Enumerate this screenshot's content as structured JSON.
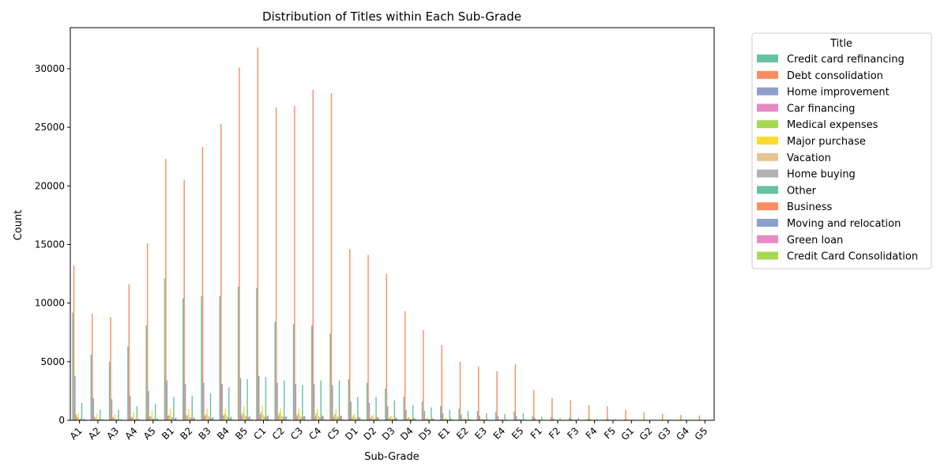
{
  "chart_data": {
    "type": "bar",
    "title": "Distribution of Titles within Each Sub-Grade",
    "xlabel": "Sub-Grade",
    "ylabel": "Count",
    "ylim": [
      0,
      33500
    ],
    "yticks": [
      0,
      5000,
      10000,
      15000,
      20000,
      25000,
      30000
    ],
    "legend_title": "Title",
    "legend_position": "outside-right",
    "categories": [
      "A1",
      "A2",
      "A3",
      "A4",
      "A5",
      "B1",
      "B2",
      "B3",
      "B4",
      "B5",
      "C1",
      "C2",
      "C3",
      "C4",
      "C5",
      "D1",
      "D2",
      "D3",
      "D4",
      "D5",
      "E1",
      "E2",
      "E3",
      "E4",
      "E5",
      "F1",
      "F2",
      "F3",
      "F4",
      "F5",
      "G1",
      "G2",
      "G3",
      "G4",
      "G5"
    ],
    "series": [
      {
        "name": "Credit card refinancing",
        "color": "#66c2a5",
        "values": [
          9200,
          5600,
          5000,
          6300,
          8100,
          12100,
          10400,
          10600,
          10600,
          11400,
          11300,
          8400,
          8200,
          8100,
          7400,
          3500,
          3200,
          2700,
          2000,
          1600,
          1200,
          1000,
          800,
          700,
          750,
          350,
          250,
          200,
          120,
          100,
          70,
          50,
          40,
          30,
          20
        ]
      },
      {
        "name": "Debt consolidation",
        "color": "#fc8d62",
        "values": [
          13200,
          9100,
          8800,
          11600,
          15100,
          22300,
          20500,
          23300,
          25300,
          30100,
          31800,
          26700,
          26800,
          28200,
          27900,
          14600,
          14100,
          12500,
          9300,
          7700,
          6400,
          5000,
          4600,
          4200,
          4800,
          2600,
          1900,
          1700,
          1300,
          1200,
          900,
          700,
          550,
          450,
          400
        ]
      },
      {
        "name": "Home improvement",
        "color": "#8da0cb",
        "values": [
          3800,
          1900,
          1800,
          2100,
          2500,
          3400,
          3100,
          3200,
          3100,
          3600,
          3800,
          3200,
          3100,
          3100,
          3000,
          1600,
          1500,
          1200,
          900,
          800,
          600,
          500,
          400,
          350,
          350,
          200,
          150,
          120,
          90,
          80,
          60,
          50,
          40,
          30,
          20
        ]
      },
      {
        "name": "Car financing",
        "color": "#e78ac3",
        "values": [
          500,
          300,
          300,
          300,
          350,
          400,
          400,
          400,
          400,
          450,
          500,
          400,
          400,
          350,
          300,
          200,
          200,
          150,
          120,
          100,
          80,
          60,
          50,
          40,
          40,
          30,
          25,
          20,
          15,
          12,
          10,
          8,
          6,
          5,
          4
        ]
      },
      {
        "name": "Medical expenses",
        "color": "#a6d854",
        "values": [
          300,
          200,
          200,
          250,
          300,
          450,
          450,
          500,
          550,
          650,
          700,
          650,
          600,
          600,
          550,
          400,
          350,
          300,
          250,
          200,
          150,
          120,
          100,
          90,
          90,
          50,
          40,
          35,
          25,
          20,
          15,
          12,
          10,
          8,
          6
        ]
      },
      {
        "name": "Major purchase",
        "color": "#ffd92f",
        "values": [
          650,
          550,
          500,
          700,
          800,
          1000,
          950,
          1000,
          1000,
          1200,
          1250,
          1000,
          1000,
          950,
          950,
          550,
          500,
          400,
          300,
          250,
          200,
          180,
          150,
          120,
          130,
          80,
          60,
          50,
          35,
          30,
          20,
          15,
          12,
          10,
          8
        ]
      },
      {
        "name": "Vacation",
        "color": "#e5c494",
        "values": [
          150,
          100,
          100,
          150,
          200,
          300,
          300,
          350,
          400,
          450,
          450,
          400,
          400,
          350,
          350,
          250,
          200,
          180,
          150,
          120,
          100,
          80,
          60,
          50,
          50,
          30,
          25,
          20,
          15,
          12,
          10,
          8,
          6,
          5,
          4
        ]
      },
      {
        "name": "Home buying",
        "color": "#b3b3b3",
        "values": [
          150,
          100,
          100,
          120,
          150,
          250,
          230,
          250,
          250,
          300,
          300,
          250,
          250,
          250,
          230,
          150,
          140,
          120,
          100,
          80,
          60,
          50,
          40,
          35,
          35,
          20,
          15,
          12,
          10,
          8,
          6,
          5,
          4,
          3,
          2
        ]
      },
      {
        "name": "Other",
        "color": "#66c2a5",
        "values": [
          1500,
          900,
          900,
          1200,
          1400,
          2000,
          2100,
          2300,
          2800,
          3500,
          3700,
          3400,
          3000,
          3400,
          3400,
          2000,
          2000,
          1700,
          1300,
          1100,
          900,
          800,
          600,
          550,
          600,
          300,
          200,
          180,
          130,
          110,
          80,
          60,
          45,
          35,
          25
        ]
      },
      {
        "name": "Business",
        "color": "#fc8d62",
        "values": [
          50,
          40,
          40,
          60,
          80,
          150,
          150,
          170,
          190,
          260,
          320,
          300,
          330,
          420,
          420,
          300,
          280,
          230,
          190,
          170,
          130,
          100,
          80,
          70,
          70,
          40,
          30,
          25,
          18,
          15,
          10,
          8,
          6,
          5,
          4
        ]
      },
      {
        "name": "Moving and relocation",
        "color": "#8da0cb",
        "values": [
          150,
          100,
          100,
          130,
          170,
          250,
          250,
          280,
          300,
          380,
          400,
          350,
          350,
          350,
          350,
          230,
          210,
          180,
          150,
          130,
          100,
          80,
          60,
          50,
          50,
          30,
          25,
          20,
          15,
          12,
          8,
          6,
          5,
          4,
          3
        ]
      },
      {
        "name": "Green loan",
        "color": "#e78ac3",
        "values": [
          20,
          15,
          15,
          20,
          25,
          35,
          35,
          40,
          40,
          50,
          55,
          50,
          50,
          50,
          45,
          30,
          28,
          25,
          20,
          18,
          14,
          12,
          10,
          8,
          8,
          5,
          4,
          3,
          2,
          2,
          1,
          1,
          1,
          1,
          1
        ]
      },
      {
        "name": "Credit Card Consolidation",
        "color": "#a6d854",
        "values": [
          50,
          40,
          40,
          45,
          55,
          80,
          80,
          85,
          90,
          110,
          110,
          100,
          95,
          95,
          90,
          55,
          50,
          45,
          35,
          30,
          25,
          20,
          15,
          12,
          12,
          8,
          6,
          5,
          4,
          3,
          2,
          2,
          1,
          1,
          1
        ]
      }
    ]
  }
}
